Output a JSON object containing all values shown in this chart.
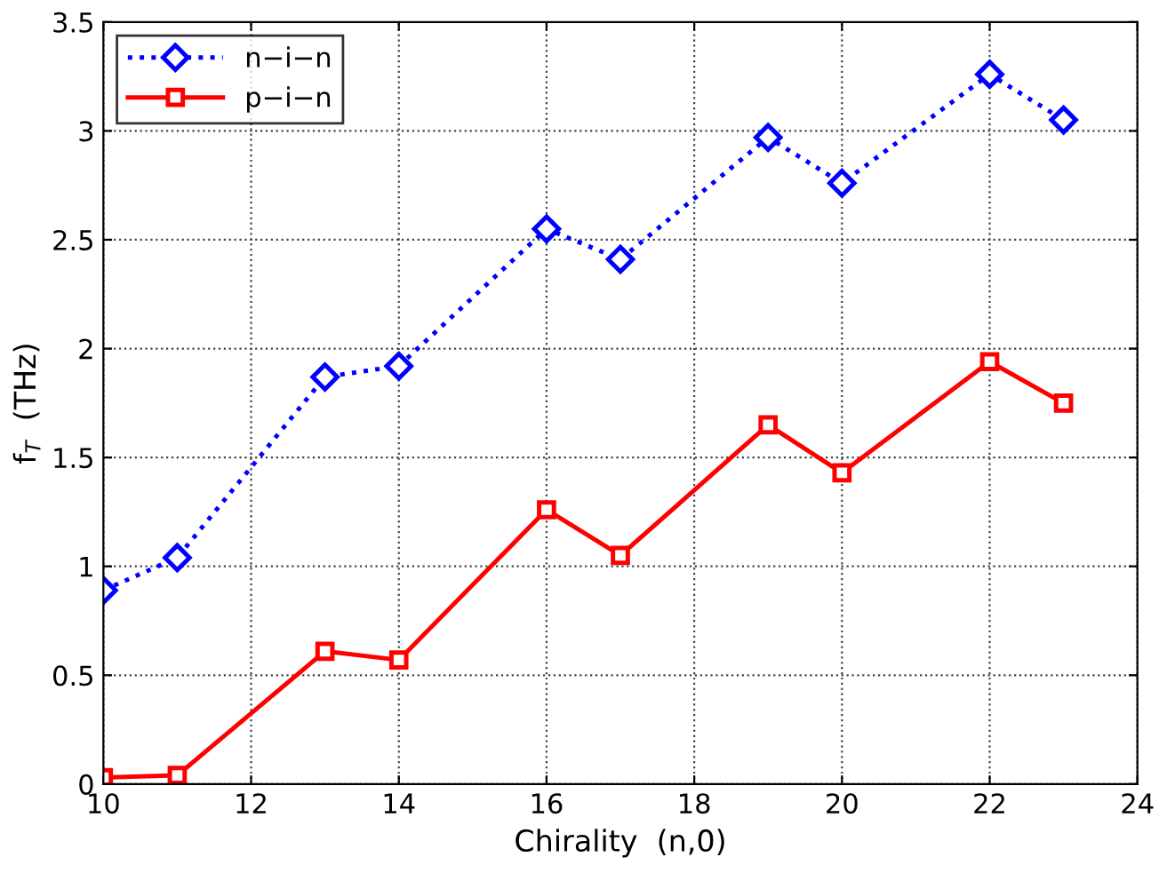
{
  "chart_data": {
    "type": "line",
    "xlabel": "Chirality  (n,0)",
    "ylabel": "f$_{T}$  (THz)",
    "x": [
      10,
      11,
      13,
      14,
      16,
      17,
      19,
      20,
      22,
      23
    ],
    "series": [
      {
        "name": "n−i−n",
        "color": "#0000ff",
        "marker": "diamond",
        "line_style": "dotted",
        "values": [
          0.89,
          1.04,
          1.87,
          1.92,
          2.55,
          2.41,
          2.97,
          2.76,
          3.26,
          3.05
        ]
      },
      {
        "name": "p−i−n",
        "color": "#ff0000",
        "marker": "square",
        "line_style": "solid",
        "values": [
          0.03,
          0.04,
          0.61,
          0.57,
          1.26,
          1.05,
          1.65,
          1.43,
          1.94,
          1.75
        ]
      }
    ],
    "xlim": [
      10,
      24
    ],
    "xticks": [
      10,
      12,
      14,
      16,
      18,
      20,
      22,
      24
    ],
    "ylim": [
      0,
      3.5
    ],
    "yticks": [
      0,
      0.5,
      1,
      1.5,
      2,
      2.5,
      3,
      3.5
    ],
    "grid": true,
    "legend": "top left"
  }
}
